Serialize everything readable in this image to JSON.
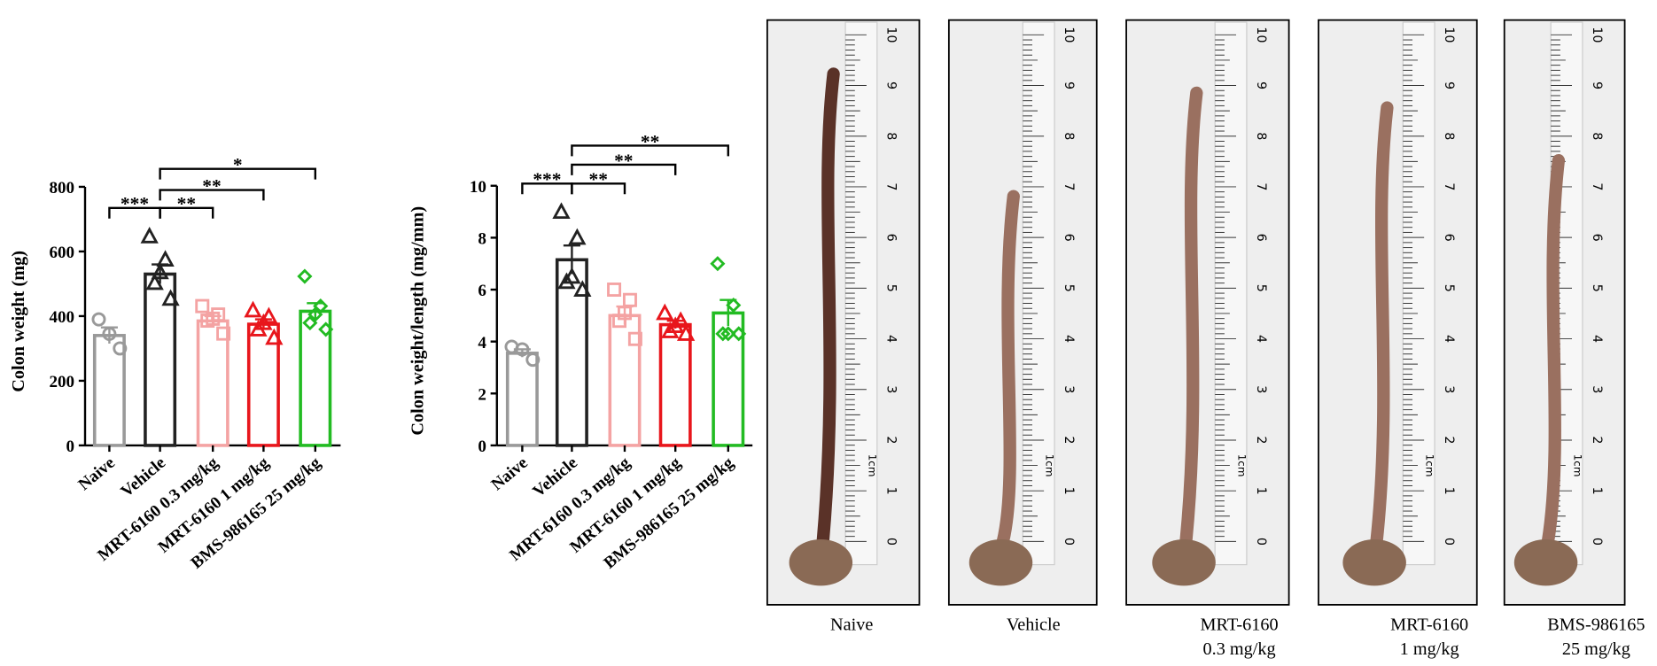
{
  "chart_data": [
    {
      "type": "bar",
      "ylabel": "Colon weight (mg)",
      "categories": [
        "Naive",
        "Vehicle",
        "MRT-6160 0.3 mg/kg",
        "MRT-6160 1 mg/kg",
        "BMS-986165 25 mg/kg"
      ],
      "values": [
        340,
        530,
        385,
        375,
        415
      ],
      "errors": [
        25,
        30,
        15,
        15,
        25
      ],
      "points": [
        [
          390,
          345,
          300
        ],
        [
          647,
          575,
          536,
          503,
          454
        ],
        [
          431,
          405,
          392,
          386,
          346
        ],
        [
          418,
          399,
          379,
          359,
          333
        ],
        [
          523,
          431,
          405,
          379,
          359
        ]
      ],
      "colors": [
        "#999999",
        "#222222",
        "#f4a3a3",
        "#e8161c",
        "#22bb22"
      ],
      "markers": [
        "circle",
        "triangle",
        "square",
        "triangle",
        "diamond"
      ],
      "ylim": [
        0,
        800
      ],
      "yticks": [
        0,
        200,
        400,
        600,
        800
      ],
      "annotations": [
        {
          "from": 0,
          "to": 1,
          "text": "***"
        },
        {
          "from": 1,
          "to": 2,
          "text": "**"
        },
        {
          "from": 1,
          "to": 3,
          "text": "**"
        },
        {
          "from": 1,
          "to": 4,
          "text": "*"
        }
      ]
    },
    {
      "type": "bar",
      "ylabel": "Colon weight/length (mg/mm)",
      "categories": [
        "Naive",
        "Vehicle",
        "MRT-6160 0.3 mg/kg",
        "MRT-6160 1 mg/kg",
        "BMS-986165 25 mg/kg"
      ],
      "values": [
        3.55,
        7.15,
        5.0,
        4.65,
        5.1
      ],
      "errors": [
        0.15,
        0.55,
        0.35,
        0.15,
        0.5
      ],
      "points": [
        [
          3.8,
          3.7,
          3.3
        ],
        [
          9.0,
          8.0,
          6.5,
          6.3,
          6.0
        ],
        [
          6.0,
          5.6,
          5.1,
          4.8,
          4.1
        ],
        [
          5.1,
          4.8,
          4.6,
          4.4,
          4.3
        ],
        [
          7.0,
          5.4,
          4.3,
          4.3,
          4.3
        ]
      ],
      "colors": [
        "#999999",
        "#222222",
        "#f4a3a3",
        "#e8161c",
        "#22bb22"
      ],
      "markers": [
        "circle",
        "triangle",
        "square",
        "triangle",
        "diamond"
      ],
      "ylim": [
        0,
        10
      ],
      "yticks": [
        0,
        2,
        4,
        6,
        8,
        10
      ],
      "annotations": [
        {
          "from": 0,
          "to": 1,
          "text": "***"
        },
        {
          "from": 1,
          "to": 2,
          "text": "**"
        },
        {
          "from": 1,
          "to": 3,
          "text": "**"
        },
        {
          "from": 1,
          "to": 4,
          "text": "**"
        }
      ]
    }
  ],
  "photo_panels": [
    {
      "label": [
        "Naive"
      ]
    },
    {
      "label": [
        "Vehicle"
      ]
    },
    {
      "label": [
        "MRT-6160",
        "0.3 mg/kg"
      ]
    },
    {
      "label": [
        "MRT-6160",
        "1 mg/kg"
      ]
    },
    {
      "label": [
        "BMS-986165",
        "25 mg/kg"
      ]
    }
  ],
  "ruler": {
    "labels": [
      0,
      1,
      2,
      3,
      4,
      5,
      6,
      7,
      8,
      9,
      10
    ],
    "unit": "1cm"
  }
}
